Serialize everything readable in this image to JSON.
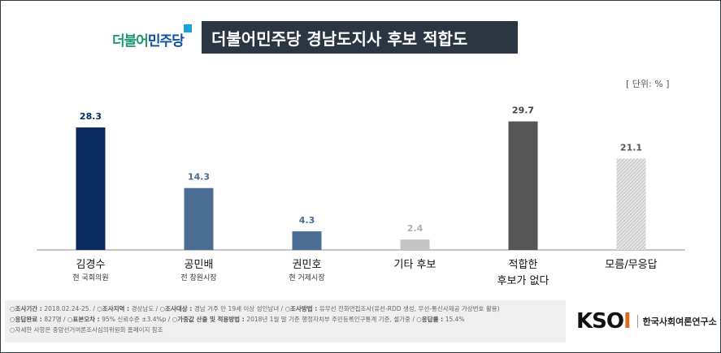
{
  "logo": {
    "text_green": "더불어",
    "text_blue": "민주당"
  },
  "title": "더불어민주당 경남도지사 후보 적합도",
  "unit": "[ 단위: % ]",
  "chart_data": {
    "type": "bar",
    "categories": [
      {
        "name": "김경수",
        "sub": "현 국회의원"
      },
      {
        "name": "공민배",
        "sub": "전 창원시장"
      },
      {
        "name": "권민호",
        "sub": "현 거제시장"
      },
      {
        "name": "기타 후보",
        "sub": ""
      },
      {
        "name": "적합한",
        "sub": "후보가 없다"
      },
      {
        "name": "모름/무응답",
        "sub": ""
      }
    ],
    "values": [
      28.3,
      14.3,
      4.3,
      2.4,
      29.7,
      21.1
    ],
    "ylim": [
      0,
      40
    ],
    "colors": [
      "#0a2b60",
      "#4c6d93",
      "#4c6d93",
      "#c4c4c4",
      "#565656",
      "#cfcfcf"
    ],
    "label_colors": [
      "#0a2b60",
      "#4c6d93",
      "#4c6d93",
      "#b0b0b0",
      "#444444",
      "#555555"
    ]
  },
  "footer": {
    "line1": [
      {
        "k": "조사기간",
        "v": "2018.02.24-25."
      },
      {
        "k": "조사지역",
        "v": "경상남도"
      },
      {
        "k": "조사대상",
        "v": "경남 거주 만 19세 이상 성인남녀"
      },
      {
        "k": "조사방법",
        "v": "유무선 전화면접조사(유선-RDD 생성, 무선-통신사제공 가상번호 활용)"
      }
    ],
    "line2": [
      {
        "k": "응答완료",
        "v": ""
      }
    ],
    "line2_text": [
      {
        "k": "응답완료",
        "v": "827명"
      },
      {
        "k": "표본오차",
        "v": "95% 신뢰수준 ±3.4%p"
      },
      {
        "k": "가중값 산출 및 적용방법",
        "v": "2018년 1월 말 기준 행정자치부 주민등록인구통계 기준, 셀가중"
      },
      {
        "k": "응답률",
        "v": "15.4%"
      }
    ],
    "line3": "자세한 사항은 중앙선거여론조사심의위원회 홈페이지 참조"
  },
  "ksoi": {
    "mark_a": "KSO",
    "mark_b": "I",
    "name": "한국사회여론연구소"
  }
}
